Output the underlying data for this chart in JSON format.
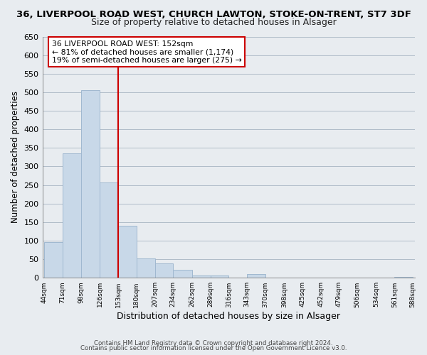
{
  "title_line1": "36, LIVERPOOL ROAD WEST, CHURCH LAWTON, STOKE-ON-TRENT, ST7 3DF",
  "title_line2": "Size of property relative to detached houses in Alsager",
  "xlabel": "Distribution of detached houses by size in Alsager",
  "ylabel": "Number of detached properties",
  "bar_edges": [
    44,
    71,
    98,
    126,
    153,
    180,
    207,
    234,
    262,
    289,
    316,
    343,
    370,
    398,
    425,
    452,
    479,
    506,
    534,
    561,
    588
  ],
  "bar_heights": [
    97,
    335,
    505,
    257,
    140,
    52,
    38,
    22,
    7,
    7,
    0,
    10,
    0,
    0,
    0,
    0,
    0,
    0,
    0,
    3
  ],
  "bar_color": "#c8d8e8",
  "bar_edgecolor": "#a0b8d0",
  "vline_x": 153,
  "vline_color": "#cc0000",
  "ylim": [
    0,
    650
  ],
  "yticks": [
    0,
    50,
    100,
    150,
    200,
    250,
    300,
    350,
    400,
    450,
    500,
    550,
    600,
    650
  ],
  "annotation_title": "36 LIVERPOOL ROAD WEST: 152sqm",
  "annotation_line2": "← 81% of detached houses are smaller (1,174)",
  "annotation_line3": "19% of semi-detached houses are larger (275) →",
  "footer_line1": "Contains HM Land Registry data © Crown copyright and database right 2024.",
  "footer_line2": "Contains public sector information licensed under the Open Government Licence v3.0.",
  "background_color": "#e8ecf0",
  "plot_bg_color": "#e8ecf0",
  "grid_color": "#b0bcc8"
}
